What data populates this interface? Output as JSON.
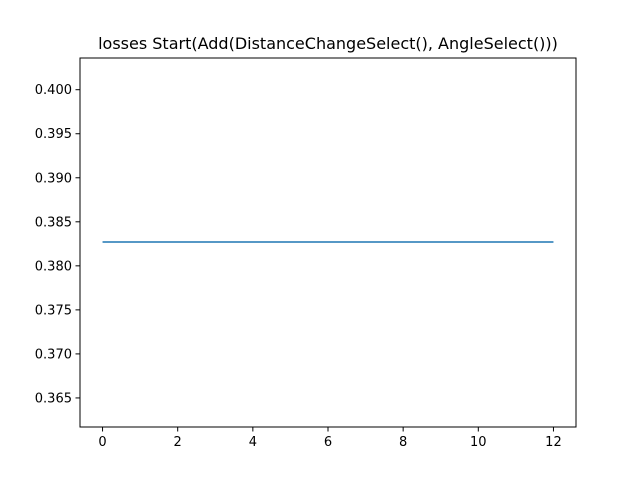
{
  "chart_data": {
    "type": "line",
    "title": "losses Start(Add(DistanceChangeSelect(), AngleSelect()))",
    "xlabel": "",
    "ylabel": "",
    "xlim": [
      -0.6,
      12.6
    ],
    "ylim": [
      0.3617,
      0.4036
    ],
    "x_ticks": [
      0,
      2,
      4,
      6,
      8,
      10,
      12
    ],
    "x_tick_labels": [
      "0",
      "2",
      "4",
      "6",
      "8",
      "10",
      "12"
    ],
    "y_ticks": [
      0.365,
      0.37,
      0.375,
      0.38,
      0.385,
      0.39,
      0.395,
      0.4
    ],
    "y_tick_labels": [
      "0.365",
      "0.370",
      "0.375",
      "0.380",
      "0.385",
      "0.390",
      "0.395",
      "0.400"
    ],
    "grid": false,
    "legend": "none",
    "series": [
      {
        "color": "#1f77b4",
        "x": [
          0,
          1,
          2,
          3,
          4,
          5,
          6,
          7,
          8,
          9,
          10,
          11,
          12
        ],
        "y": [
          0.3827,
          0.3827,
          0.3827,
          0.3827,
          0.3827,
          0.3827,
          0.3827,
          0.3827,
          0.3827,
          0.3827,
          0.3827,
          0.3827,
          0.3827
        ]
      }
    ]
  }
}
